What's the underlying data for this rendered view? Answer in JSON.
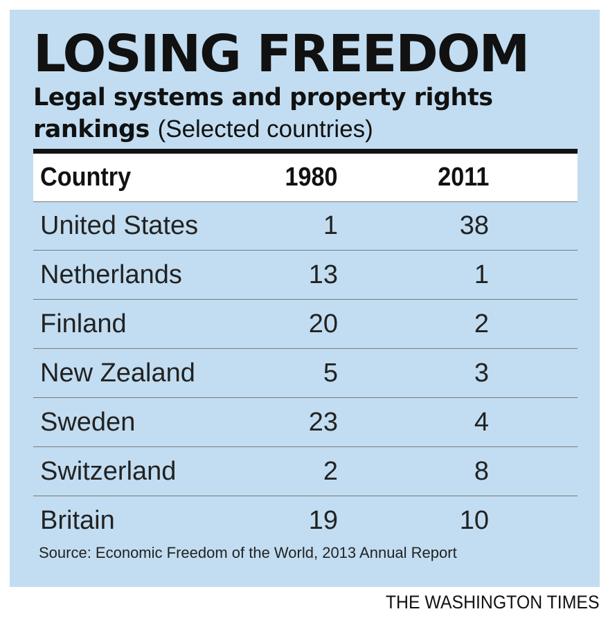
{
  "chart_data": {
    "type": "table",
    "title": "LOSING FREEDOM",
    "subtitle_bold": "Legal systems and property rights rankings",
    "subtitle_light": "(Selected countries)",
    "columns": [
      "Country",
      "1980",
      "2011"
    ],
    "rows": [
      {
        "country": "United States",
        "y1980": 1,
        "y2011": 38
      },
      {
        "country": "Netherlands",
        "y1980": 13,
        "y2011": 1
      },
      {
        "country": "Finland",
        "y1980": 20,
        "y2011": 2
      },
      {
        "country": "New Zealand",
        "y1980": 5,
        "y2011": 3
      },
      {
        "country": "Sweden",
        "y1980": 23,
        "y2011": 4
      },
      {
        "country": "Switzerland",
        "y1980": 2,
        "y2011": 8
      },
      {
        "country": "Britain",
        "y1980": 19,
        "y2011": 10
      }
    ],
    "source": "Source:  Economic Freedom of the World, 2013 Annual Report"
  },
  "credit": "THE WASHINGTON TIMES",
  "colors": {
    "panel": "#c2ddf1",
    "header_bg": "#ffffff",
    "rule": "#111111"
  }
}
